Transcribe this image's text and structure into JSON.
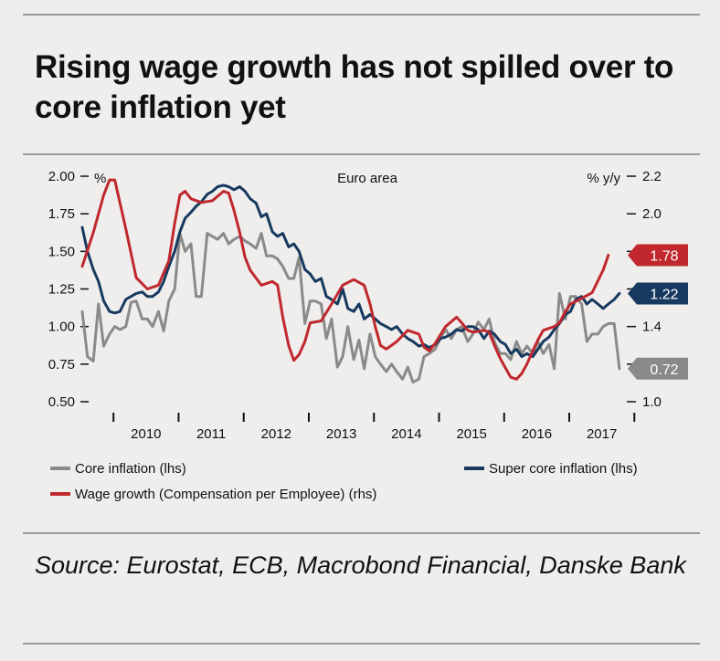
{
  "title": "Rising wage growth has not spilled over to core inflation yet",
  "source": "Source: Eurostat, ECB, Macrobond Financial, Danske Bank",
  "colors": {
    "background": "#efeeec",
    "core": "#8a8a8a",
    "super": "#17395f",
    "wage": "#c0282e",
    "rule": "#9a9a9a"
  },
  "chart_data": {
    "type": "line",
    "annotation": "Euro area",
    "left_axis": {
      "unit": "%",
      "ylim": [
        0.5,
        2.0
      ],
      "ticks": [
        "2.00",
        "1.75",
        "1.50",
        "1.25",
        "1.00",
        "0.75",
        "0.50"
      ]
    },
    "right_axis": {
      "unit": "% y/y",
      "ylim": [
        1.0,
        2.2
      ],
      "ticks": [
        "2.2",
        "2.0",
        "1.8",
        "1.6",
        "1.4",
        "1.2",
        "1.0"
      ]
    },
    "x_years": [
      "2010",
      "2011",
      "2012",
      "2013",
      "2014",
      "2015",
      "2016",
      "2017"
    ],
    "x_range": [
      2009.5,
      2017.92
    ],
    "series": [
      {
        "name": "Core inflation (lhs)",
        "axis": "left",
        "color": "#8a8a8a",
        "end_label": "0.72",
        "points": [
          [
            2009.5,
            1.1
          ],
          [
            2009.58,
            0.8
          ],
          [
            2009.67,
            0.77
          ],
          [
            2009.75,
            1.15
          ],
          [
            2009.83,
            0.87
          ],
          [
            2009.92,
            0.95
          ],
          [
            2010.0,
            1.0
          ],
          [
            2010.08,
            0.98
          ],
          [
            2010.17,
            1.0
          ],
          [
            2010.25,
            1.16
          ],
          [
            2010.33,
            1.17
          ],
          [
            2010.42,
            1.05
          ],
          [
            2010.5,
            1.05
          ],
          [
            2010.58,
            1.0
          ],
          [
            2010.67,
            1.1
          ],
          [
            2010.75,
            0.97
          ],
          [
            2010.83,
            1.17
          ],
          [
            2010.92,
            1.25
          ],
          [
            2011.0,
            1.62
          ],
          [
            2011.08,
            1.5
          ],
          [
            2011.17,
            1.55
          ],
          [
            2011.25,
            1.2
          ],
          [
            2011.33,
            1.2
          ],
          [
            2011.42,
            1.62
          ],
          [
            2011.5,
            1.6
          ],
          [
            2011.58,
            1.58
          ],
          [
            2011.67,
            1.62
          ],
          [
            2011.75,
            1.55
          ],
          [
            2011.83,
            1.58
          ],
          [
            2011.92,
            1.6
          ],
          [
            2012.0,
            1.57
          ],
          [
            2012.08,
            1.55
          ],
          [
            2012.17,
            1.52
          ],
          [
            2012.25,
            1.62
          ],
          [
            2012.33,
            1.47
          ],
          [
            2012.42,
            1.47
          ],
          [
            2012.5,
            1.45
          ],
          [
            2012.58,
            1.4
          ],
          [
            2012.67,
            1.32
          ],
          [
            2012.75,
            1.32
          ],
          [
            2012.83,
            1.46
          ],
          [
            2012.92,
            1.02
          ],
          [
            2013.0,
            1.17
          ],
          [
            2013.08,
            1.17
          ],
          [
            2013.17,
            1.15
          ],
          [
            2013.25,
            0.92
          ],
          [
            2013.33,
            1.05
          ],
          [
            2013.42,
            0.73
          ],
          [
            2013.5,
            0.8
          ],
          [
            2013.58,
            1.0
          ],
          [
            2013.67,
            0.78
          ],
          [
            2013.75,
            0.91
          ],
          [
            2013.83,
            0.72
          ],
          [
            2013.92,
            0.95
          ],
          [
            2014.0,
            0.8
          ],
          [
            2014.08,
            0.75
          ],
          [
            2014.17,
            0.7
          ],
          [
            2014.25,
            0.75
          ],
          [
            2014.33,
            0.7
          ],
          [
            2014.42,
            0.65
          ],
          [
            2014.5,
            0.73
          ],
          [
            2014.58,
            0.63
          ],
          [
            2014.67,
            0.65
          ],
          [
            2014.75,
            0.8
          ],
          [
            2014.83,
            0.82
          ],
          [
            2014.92,
            0.85
          ],
          [
            2015.0,
            0.92
          ],
          [
            2015.08,
            0.98
          ],
          [
            2015.17,
            0.92
          ],
          [
            2015.25,
            0.98
          ],
          [
            2015.33,
            1.0
          ],
          [
            2015.42,
            0.9
          ],
          [
            2015.5,
            0.95
          ],
          [
            2015.58,
            1.03
          ],
          [
            2015.67,
            0.98
          ],
          [
            2015.75,
            1.05
          ],
          [
            2015.83,
            0.9
          ],
          [
            2015.92,
            0.82
          ],
          [
            2016.0,
            0.82
          ],
          [
            2016.08,
            0.78
          ],
          [
            2016.17,
            0.9
          ],
          [
            2016.25,
            0.82
          ],
          [
            2016.33,
            0.87
          ],
          [
            2016.42,
            0.82
          ],
          [
            2016.5,
            0.9
          ],
          [
            2016.58,
            0.82
          ],
          [
            2016.67,
            0.88
          ],
          [
            2016.75,
            0.72
          ],
          [
            2016.83,
            1.22
          ],
          [
            2016.92,
            1.05
          ],
          [
            2017.0,
            1.2
          ],
          [
            2017.08,
            1.2
          ],
          [
            2017.17,
            1.15
          ],
          [
            2017.25,
            0.9
          ],
          [
            2017.33,
            0.95
          ],
          [
            2017.42,
            0.95
          ],
          [
            2017.5,
            1.0
          ],
          [
            2017.58,
            1.02
          ],
          [
            2017.67,
            1.02
          ],
          [
            2017.75,
            0.72
          ]
        ]
      },
      {
        "name": "Super core inflation (lhs)",
        "axis": "left",
        "color": "#17395f",
        "end_label": "1.22",
        "points": [
          [
            2009.5,
            1.66
          ],
          [
            2009.58,
            1.5
          ],
          [
            2009.67,
            1.38
          ],
          [
            2009.75,
            1.3
          ],
          [
            2009.83,
            1.17
          ],
          [
            2009.92,
            1.1
          ],
          [
            2010.0,
            1.09
          ],
          [
            2010.08,
            1.1
          ],
          [
            2010.17,
            1.18
          ],
          [
            2010.25,
            1.2
          ],
          [
            2010.33,
            1.22
          ],
          [
            2010.42,
            1.23
          ],
          [
            2010.5,
            1.2
          ],
          [
            2010.58,
            1.2
          ],
          [
            2010.67,
            1.23
          ],
          [
            2010.75,
            1.3
          ],
          [
            2010.83,
            1.4
          ],
          [
            2010.92,
            1.5
          ],
          [
            2011.0,
            1.63
          ],
          [
            2011.08,
            1.72
          ],
          [
            2011.17,
            1.76
          ],
          [
            2011.25,
            1.8
          ],
          [
            2011.33,
            1.83
          ],
          [
            2011.42,
            1.88
          ],
          [
            2011.5,
            1.9
          ],
          [
            2011.58,
            1.93
          ],
          [
            2011.67,
            1.94
          ],
          [
            2011.75,
            1.93
          ],
          [
            2011.83,
            1.91
          ],
          [
            2011.92,
            1.93
          ],
          [
            2012.0,
            1.9
          ],
          [
            2012.08,
            1.85
          ],
          [
            2012.17,
            1.82
          ],
          [
            2012.25,
            1.73
          ],
          [
            2012.33,
            1.75
          ],
          [
            2012.42,
            1.63
          ],
          [
            2012.5,
            1.6
          ],
          [
            2012.58,
            1.62
          ],
          [
            2012.67,
            1.53
          ],
          [
            2012.75,
            1.55
          ],
          [
            2012.83,
            1.5
          ],
          [
            2012.92,
            1.38
          ],
          [
            2013.0,
            1.35
          ],
          [
            2013.08,
            1.3
          ],
          [
            2013.17,
            1.32
          ],
          [
            2013.25,
            1.2
          ],
          [
            2013.33,
            1.18
          ],
          [
            2013.42,
            1.15
          ],
          [
            2013.5,
            1.25
          ],
          [
            2013.58,
            1.12
          ],
          [
            2013.67,
            1.1
          ],
          [
            2013.75,
            1.15
          ],
          [
            2013.83,
            1.05
          ],
          [
            2013.92,
            1.08
          ],
          [
            2014.0,
            1.05
          ],
          [
            2014.08,
            1.02
          ],
          [
            2014.17,
            1.0
          ],
          [
            2014.25,
            0.98
          ],
          [
            2014.33,
            1.0
          ],
          [
            2014.42,
            0.95
          ],
          [
            2014.5,
            0.92
          ],
          [
            2014.58,
            0.9
          ],
          [
            2014.67,
            0.87
          ],
          [
            2014.75,
            0.88
          ],
          [
            2014.83,
            0.86
          ],
          [
            2014.92,
            0.88
          ],
          [
            2015.0,
            0.92
          ],
          [
            2015.08,
            0.93
          ],
          [
            2015.17,
            0.95
          ],
          [
            2015.25,
            0.98
          ],
          [
            2015.33,
            0.97
          ],
          [
            2015.42,
            1.0
          ],
          [
            2015.5,
            1.0
          ],
          [
            2015.58,
            0.98
          ],
          [
            2015.67,
            0.92
          ],
          [
            2015.75,
            0.97
          ],
          [
            2015.83,
            0.95
          ],
          [
            2015.92,
            0.9
          ],
          [
            2016.0,
            0.88
          ],
          [
            2016.08,
            0.82
          ],
          [
            2016.17,
            0.85
          ],
          [
            2016.25,
            0.8
          ],
          [
            2016.33,
            0.82
          ],
          [
            2016.42,
            0.8
          ],
          [
            2016.5,
            0.85
          ],
          [
            2016.58,
            0.9
          ],
          [
            2016.67,
            0.93
          ],
          [
            2016.75,
            0.98
          ],
          [
            2016.83,
            1.02
          ],
          [
            2016.92,
            1.08
          ],
          [
            2017.0,
            1.1
          ],
          [
            2017.08,
            1.18
          ],
          [
            2017.17,
            1.2
          ],
          [
            2017.25,
            1.15
          ],
          [
            2017.33,
            1.18
          ],
          [
            2017.42,
            1.15
          ],
          [
            2017.5,
            1.12
          ],
          [
            2017.58,
            1.15
          ],
          [
            2017.67,
            1.18
          ],
          [
            2017.75,
            1.22
          ]
        ]
      },
      {
        "name": "Wage growth (Compensation per Employee) (rhs)",
        "axis": "right",
        "color": "#c0282e",
        "end_label": "1.78",
        "points": [
          [
            2009.5,
            1.72
          ],
          [
            2009.67,
            1.9
          ],
          [
            2009.83,
            2.1
          ],
          [
            2009.92,
            2.18
          ],
          [
            2010.0,
            2.18
          ],
          [
            2010.17,
            1.92
          ],
          [
            2010.33,
            1.66
          ],
          [
            2010.5,
            1.6
          ],
          [
            2010.67,
            1.62
          ],
          [
            2010.83,
            1.75
          ],
          [
            2010.92,
            1.95
          ],
          [
            2011.0,
            2.1
          ],
          [
            2011.08,
            2.12
          ],
          [
            2011.17,
            2.08
          ],
          [
            2011.33,
            2.06
          ],
          [
            2011.5,
            2.07
          ],
          [
            2011.67,
            2.12
          ],
          [
            2011.75,
            2.11
          ],
          [
            2011.83,
            2.02
          ],
          [
            2011.92,
            1.9
          ],
          [
            2012.0,
            1.77
          ],
          [
            2012.08,
            1.7
          ],
          [
            2012.25,
            1.62
          ],
          [
            2012.42,
            1.64
          ],
          [
            2012.5,
            1.62
          ],
          [
            2012.58,
            1.45
          ],
          [
            2012.67,
            1.3
          ],
          [
            2012.75,
            1.22
          ],
          [
            2012.83,
            1.25
          ],
          [
            2012.92,
            1.32
          ],
          [
            2013.0,
            1.42
          ],
          [
            2013.17,
            1.43
          ],
          [
            2013.33,
            1.52
          ],
          [
            2013.5,
            1.62
          ],
          [
            2013.67,
            1.65
          ],
          [
            2013.83,
            1.62
          ],
          [
            2013.92,
            1.52
          ],
          [
            2014.0,
            1.4
          ],
          [
            2014.08,
            1.3
          ],
          [
            2014.17,
            1.28
          ],
          [
            2014.33,
            1.32
          ],
          [
            2014.5,
            1.38
          ],
          [
            2014.67,
            1.36
          ],
          [
            2014.75,
            1.29
          ],
          [
            2014.83,
            1.27
          ],
          [
            2014.92,
            1.31
          ],
          [
            2015.08,
            1.4
          ],
          [
            2015.25,
            1.45
          ],
          [
            2015.33,
            1.42
          ],
          [
            2015.42,
            1.38
          ],
          [
            2015.5,
            1.37
          ],
          [
            2015.67,
            1.38
          ],
          [
            2015.75,
            1.37
          ],
          [
            2015.83,
            1.3
          ],
          [
            2015.92,
            1.23
          ],
          [
            2016.0,
            1.18
          ],
          [
            2016.08,
            1.13
          ],
          [
            2016.17,
            1.12
          ],
          [
            2016.25,
            1.15
          ],
          [
            2016.33,
            1.2
          ],
          [
            2016.42,
            1.27
          ],
          [
            2016.5,
            1.33
          ],
          [
            2016.58,
            1.38
          ],
          [
            2016.75,
            1.4
          ],
          [
            2016.83,
            1.42
          ],
          [
            2016.92,
            1.48
          ],
          [
            2017.0,
            1.52
          ],
          [
            2017.17,
            1.55
          ],
          [
            2017.33,
            1.58
          ],
          [
            2017.5,
            1.7
          ],
          [
            2017.58,
            1.78
          ]
        ]
      }
    ]
  }
}
